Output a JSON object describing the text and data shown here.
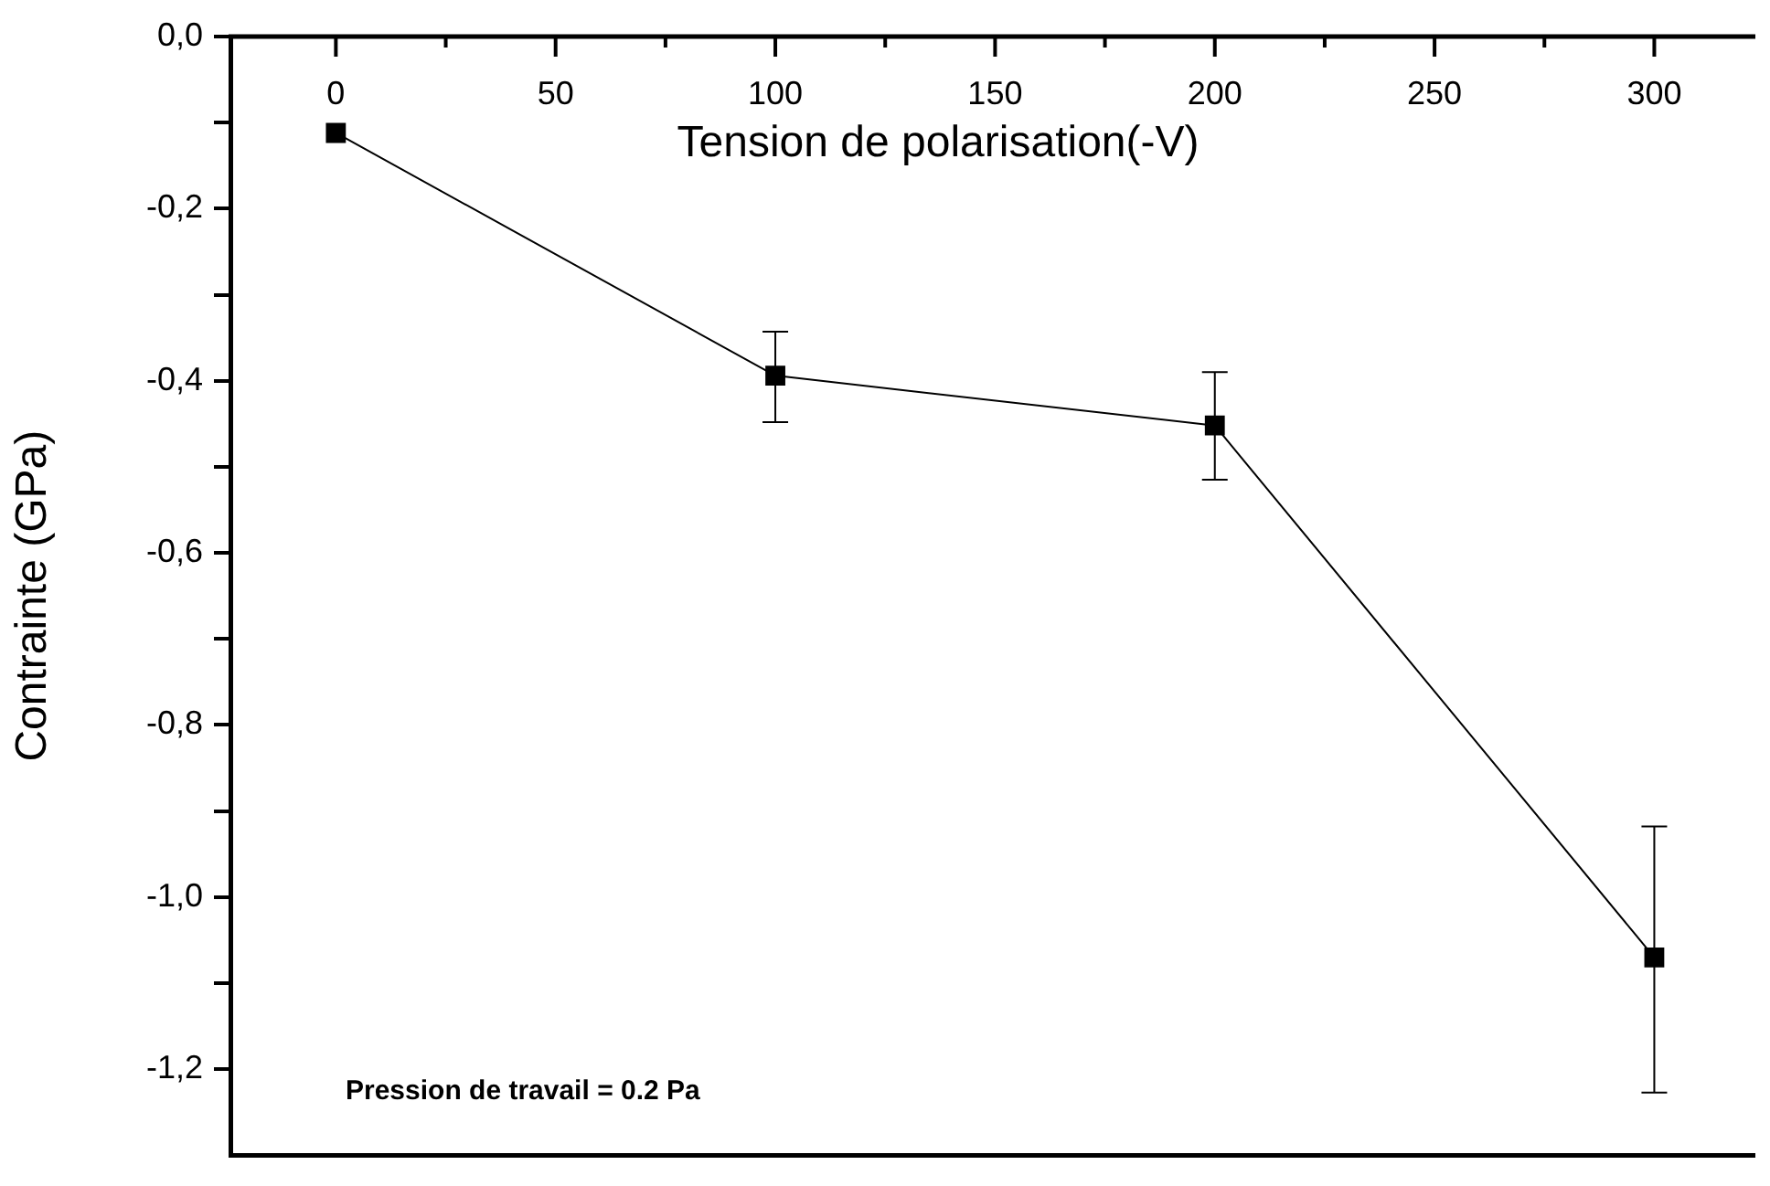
{
  "chart_data": {
    "type": "line",
    "xlabel": "Tension de polarisation(-V)",
    "ylabel": "Contrainte (GPa)",
    "annotations": [
      "Pression de travail = 0.2 Pa"
    ],
    "x": [
      0,
      100,
      200,
      300
    ],
    "series": [
      {
        "color": "#000000",
        "values": [
          -0.112,
          -0.394,
          -0.452,
          -1.07
        ],
        "errors": [
          null,
          [
            -0.448,
            -0.343
          ],
          [
            -0.515,
            -0.39
          ],
          [
            -1.227,
            -0.918
          ]
        ]
      }
    ],
    "xlim": [
      -24,
      323
    ],
    "xticks": [
      0,
      {
        "value": 25,
        "label": null
      },
      50,
      {
        "value": 75,
        "label": null
      },
      100,
      {
        "value": 125,
        "label": null
      },
      150,
      {
        "value": 175,
        "label": null
      },
      200,
      {
        "value": 225,
        "label": null
      },
      250,
      {
        "value": 275,
        "label": null
      },
      300
    ],
    "ylim": [
      -1.3,
      0
    ],
    "yticks": [
      {
        "value": 0,
        "label": "0,0"
      },
      {
        "value": -0.1,
        "label": null
      },
      {
        "value": -0.2,
        "label": "-0,2"
      },
      {
        "value": -0.3,
        "label": null
      },
      {
        "value": -0.4,
        "label": "-0,4"
      },
      {
        "value": -0.5,
        "label": null
      },
      {
        "value": -0.6,
        "label": "-0,6"
      },
      {
        "value": -0.7,
        "label": null
      },
      {
        "value": -0.8,
        "label": "-0,8"
      },
      {
        "value": -0.9,
        "label": null
      },
      {
        "value": -1.0,
        "label": "-1,0"
      },
      {
        "value": -1.1,
        "label": null
      },
      {
        "value": -1.2,
        "label": "-1,2"
      }
    ],
    "grid": false,
    "legend": false,
    "marker": "square",
    "line_style": "solid"
  }
}
